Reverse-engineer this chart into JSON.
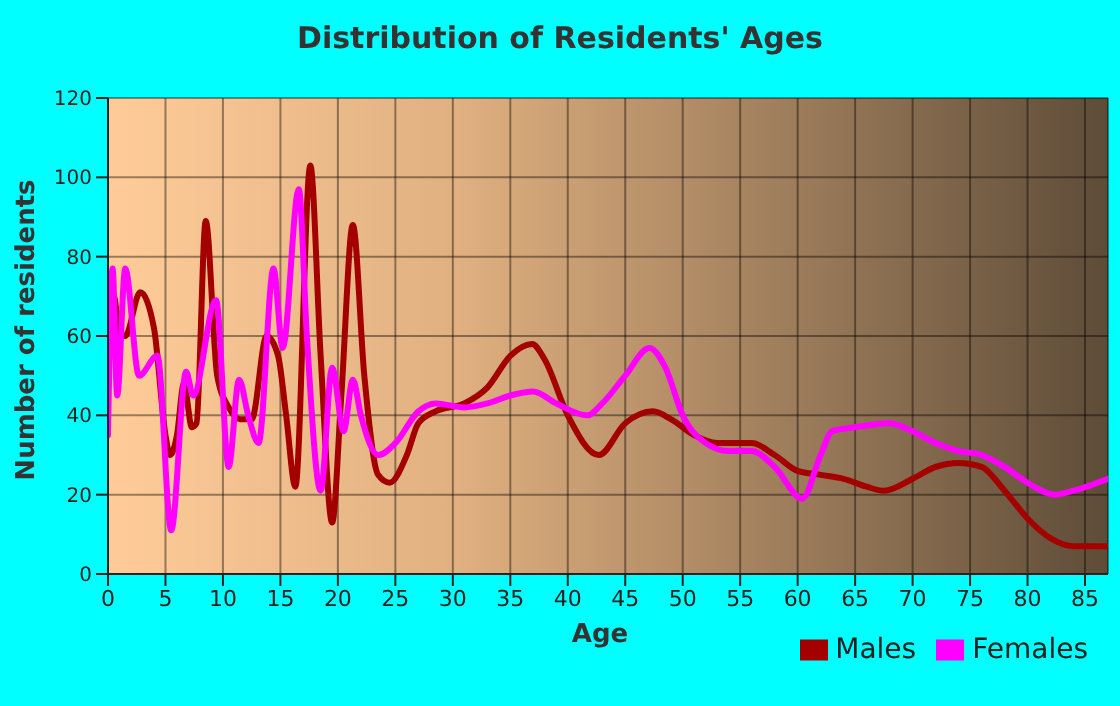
{
  "chart_data": {
    "type": "line",
    "title": "Distribution of Residents' Ages",
    "xlabel": "Age",
    "ylabel": "Number of residents",
    "xlim": [
      0,
      87
    ],
    "xticks": [
      0,
      5,
      10,
      15,
      20,
      25,
      30,
      35,
      40,
      45,
      50,
      55,
      60,
      65,
      70,
      75,
      80,
      85
    ],
    "ylim": [
      0,
      120
    ],
    "yticks": [
      0,
      20,
      40,
      60,
      80,
      100,
      120
    ],
    "grid": true,
    "legend": "bottom",
    "marker": "none",
    "line_style": "solid",
    "series": [
      {
        "name": "Males",
        "color": "#a50000",
        "x": [
          0,
          0.5,
          1,
          1.5,
          2.8,
          4,
          5,
          5.4,
          6,
          6.6,
          7.3,
          7.7,
          8.5,
          9.5,
          10.5,
          11.5,
          12.5,
          13.8,
          14.8,
          15.5,
          16.3,
          17.6,
          18.5,
          19.5,
          20.3,
          21.3,
          22.3,
          23.5,
          24.5,
          26,
          27,
          28.5,
          31,
          33,
          35,
          36.9,
          38,
          40,
          42.7,
          45,
          47.4,
          49,
          51,
          53,
          56,
          58,
          60,
          62,
          64,
          66,
          67.5,
          70,
          72,
          74,
          76,
          78,
          80,
          82,
          84,
          87
        ],
        "values": [
          60,
          70,
          61,
          60,
          71,
          62,
          35,
          30,
          35,
          48,
          37,
          38,
          89,
          50,
          42,
          39,
          39,
          60,
          55,
          40,
          22,
          103,
          55,
          13,
          45,
          88,
          50,
          25,
          23,
          30,
          38,
          41,
          43,
          47,
          55,
          58,
          54,
          40,
          30,
          38,
          41,
          39,
          35,
          33,
          33,
          30,
          26,
          25,
          24,
          22,
          21,
          24,
          27,
          28,
          27,
          21,
          14,
          9,
          7,
          7
        ]
      },
      {
        "name": "Females",
        "color": "#ff00ff",
        "x": [
          0,
          0.4,
          0.8,
          1.5,
          2.7,
          4.3,
          5.5,
          6.8,
          7.4,
          9.4,
          10.5,
          11.4,
          12.2,
          13.1,
          14.4,
          15.2,
          16.6,
          17.3,
          18.5,
          19.5,
          20.5,
          21.3,
          22,
          23.5,
          25,
          27,
          28.5,
          31,
          33,
          35,
          37,
          39,
          41.7,
          43,
          45,
          47.1,
          48.5,
          50,
          52,
          54,
          56,
          58,
          60.4,
          62,
          63,
          65,
          68,
          70,
          72,
          74,
          76,
          78,
          80,
          82.4,
          84,
          87
        ],
        "values": [
          35,
          77,
          45,
          77,
          50,
          55,
          11,
          51,
          45,
          69,
          27,
          49,
          40,
          33,
          77,
          57,
          97,
          60,
          21,
          52,
          36,
          49,
          40,
          30,
          33,
          41,
          43,
          42,
          43,
          45,
          46,
          43,
          40,
          43,
          50,
          57,
          52,
          40,
          33,
          31,
          31,
          27,
          19,
          30,
          36,
          37,
          38,
          36,
          33,
          31,
          30,
          27,
          23,
          20,
          21,
          24
        ]
      }
    ]
  }
}
